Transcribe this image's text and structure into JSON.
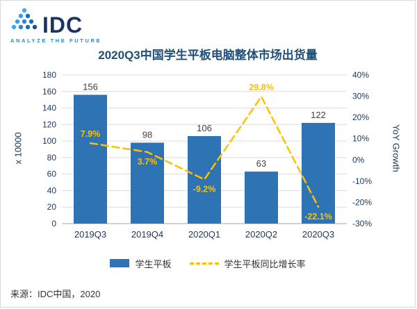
{
  "header": {
    "logo_text": "IDC",
    "tagline": "ANALYZE THE FUTURE"
  },
  "chart_data": {
    "type": "bar",
    "title": "2020Q3中国学生平板电脑整体市场出货量",
    "categories": [
      "2019Q3",
      "2019Q4",
      "2020Q1",
      "2020Q2",
      "2020Q3"
    ],
    "series": [
      {
        "name": "学生平板",
        "type": "bar",
        "values": [
          156,
          98,
          106,
          63,
          122
        ],
        "color": "#2e74b5"
      },
      {
        "name": "学生平板同比增长率",
        "type": "line",
        "values": [
          7.9,
          3.7,
          -9.2,
          29.8,
          -22.1
        ],
        "color": "#ffc000",
        "dashed": true
      }
    ],
    "line_labels": [
      "7.9%",
      "3.7%",
      "-9.2%",
      "29.8%",
      "-22.1%"
    ],
    "left_axis": {
      "label": "x 10000",
      "min": 0,
      "max": 180,
      "step": 20
    },
    "right_axis": {
      "label": "YoY Growth",
      "min": -30,
      "max": 40,
      "step": 10,
      "unit": "%"
    },
    "grid": true,
    "legend_position": "bottom"
  },
  "footer": {
    "source": "来源：IDC中国，2020"
  }
}
